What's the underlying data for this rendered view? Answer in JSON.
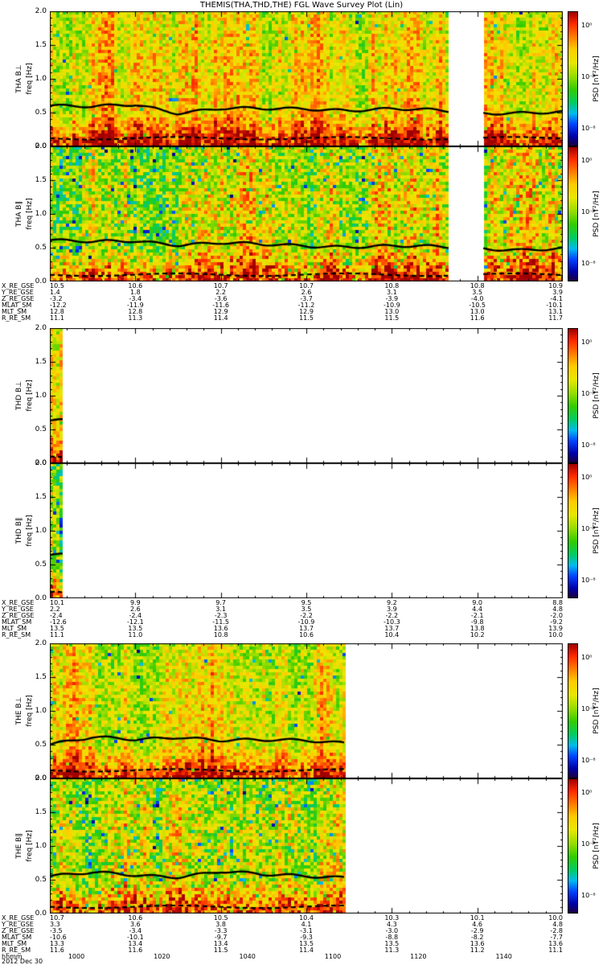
{
  "title": "THEMIS(THA,THD,THE) FGL Wave Survey Plot (Lin)",
  "colorbar": {
    "label": "PSD [nT²/Hz]",
    "ticks": [
      "10⁰",
      "10⁻⁴",
      "10⁻⁸"
    ]
  },
  "y_axis": {
    "label": "freq [Hz]",
    "tick_labels": [
      "2.0",
      "1.5",
      "1.0",
      "0.5",
      "0.0"
    ]
  },
  "panels": [
    {
      "name": "THA B⊥",
      "ylabel": "freq [Hz]"
    },
    {
      "name": "THA B∥",
      "ylabel": "freq [Hz]"
    },
    {
      "name": "THD B⊥",
      "ylabel": "freq [Hz]"
    },
    {
      "name": "THD B∥",
      "ylabel": "freq [Hz]"
    },
    {
      "name": "THE B⊥",
      "ylabel": "freq [Hz]"
    },
    {
      "name": "THE B∥",
      "ylabel": "freq [Hz]"
    }
  ],
  "sections": [
    {
      "satellite": "THA",
      "rows": [
        {
          "label": "X_RE_GSE",
          "values": [
            "10.5",
            "10.6",
            "10.7",
            "10.7",
            "10.8",
            "10.8",
            "10.9"
          ]
        },
        {
          "label": "Y_RE_GSE",
          "values": [
            "1.4",
            "1.8",
            "2.2",
            "2.6",
            "3.1",
            "3.5",
            "3.9"
          ]
        },
        {
          "label": "Z_RE_GSE",
          "values": [
            "-3.2",
            "-3.4",
            "-3.6",
            "-3.7",
            "-3.9",
            "-4.0",
            "-4.1"
          ]
        },
        {
          "label": "MLAT_SM",
          "values": [
            "-12.2",
            "-11.9",
            "-11.6",
            "-11.2",
            "-10.9",
            "-10.5",
            "-10.1"
          ]
        },
        {
          "label": "MLT_SM",
          "values": [
            "12.8",
            "12.8",
            "12.9",
            "12.9",
            "13.0",
            "13.0",
            "13.1"
          ]
        },
        {
          "label": "R_RE_SM",
          "values": [
            "11.1",
            "11.3",
            "11.4",
            "11.5",
            "11.5",
            "11.6",
            "11.7"
          ]
        }
      ]
    },
    {
      "satellite": "THD",
      "rows": [
        {
          "label": "X_RE_GSE",
          "values": [
            "10.1",
            "9.9",
            "9.7",
            "9.5",
            "9.2",
            "9.0",
            "8.8"
          ]
        },
        {
          "label": "Y_RE_GSE",
          "values": [
            "2.2",
            "2.6",
            "3.1",
            "3.5",
            "3.9",
            "4.4",
            "4.8"
          ]
        },
        {
          "label": "Z_RE_GSE",
          "values": [
            "-2.4",
            "-2.4",
            "-2.3",
            "-2.2",
            "-2.2",
            "-2.1",
            "-2.0"
          ]
        },
        {
          "label": "MLAT_SM",
          "values": [
            "-12.6",
            "-12.1",
            "-11.5",
            "-10.9",
            "-10.3",
            "-9.8",
            "-9.2"
          ]
        },
        {
          "label": "MLT_SM",
          "values": [
            "13.5",
            "13.5",
            "13.6",
            "13.7",
            "13.7",
            "13.8",
            "13.9"
          ]
        },
        {
          "label": "R_RE_SM",
          "values": [
            "11.1",
            "11.0",
            "10.8",
            "10.6",
            "10.4",
            "10.2",
            "10.0"
          ]
        }
      ]
    },
    {
      "satellite": "THE",
      "rows": [
        {
          "label": "X_RE_GSE",
          "values": [
            "10.7",
            "10.6",
            "10.5",
            "10.4",
            "10.3",
            "10.1",
            "10.0"
          ]
        },
        {
          "label": "Y_RE_GSE",
          "values": [
            "3.3",
            "3.6",
            "3.8",
            "4.1",
            "4.3",
            "4.6",
            "4.8"
          ]
        },
        {
          "label": "Z_RE_GSE",
          "values": [
            "-3.5",
            "-3.4",
            "-3.3",
            "-3.1",
            "-3.0",
            "-2.9",
            "-2.8"
          ]
        },
        {
          "label": "MLAT_SM",
          "values": [
            "-10.6",
            "-10.1",
            "-9.7",
            "-9.3",
            "-8.8",
            "-8.2",
            "-7.7"
          ]
        },
        {
          "label": "MLT_SM",
          "values": [
            "13.3",
            "13.4",
            "13.4",
            "13.5",
            "13.5",
            "13.6",
            "13.6"
          ]
        },
        {
          "label": "R_RE_SM",
          "values": [
            "11.6",
            "11.6",
            "11.5",
            "11.4",
            "11.3",
            "11.2",
            "11.1"
          ]
        }
      ]
    }
  ],
  "time_axis": {
    "label": "hhmm",
    "values": [
      "1000",
      "1020",
      "1040",
      "1100",
      "1120",
      "1140"
    ],
    "date": "2012 Dec 30"
  },
  "chart_data": {
    "type": "heatmap",
    "subtype": "wave-survey-spectrogram",
    "title": "THEMIS(THA,THD,THE) FGL Wave Survey Plot (Lin)",
    "x_axis": {
      "label": "hhmm",
      "date": "2012 Dec 30",
      "tick_labels": [
        "1000",
        "1020",
        "1040",
        "1100",
        "1120",
        "1140"
      ]
    },
    "y_axis": {
      "label": "freq [Hz]",
      "range": [
        0,
        2
      ],
      "ticks": [
        0.0,
        0.5,
        1.0,
        1.5,
        2.0
      ]
    },
    "color_scale": {
      "label": "PSD [nT²/Hz]",
      "colormap": "rainbow",
      "tick_labels": [
        "10⁰",
        "10⁻⁴",
        "10⁻⁸"
      ],
      "range_log10": [
        -8,
        1
      ]
    },
    "line_x_sampling": "solid_line_hz points are evenly spaced over the full x range 0..1",
    "panels": [
      {
        "name": "THA B⊥",
        "style": "perp",
        "coverage": [
          [
            0.0,
            0.78
          ],
          [
            0.845,
            1.0
          ]
        ],
        "solid_line_hz": [
          0.6,
          0.58,
          0.62,
          0.5,
          0.56,
          0.55,
          0.56,
          0.54,
          0.55,
          0.53,
          0.5,
          0.5,
          0.5
        ],
        "dashed_line_hz": 0.12
      },
      {
        "name": "THA B∥",
        "style": "par",
        "coverage": [
          [
            0.0,
            0.78
          ],
          [
            0.845,
            1.0
          ]
        ],
        "solid_line_hz": [
          0.61,
          0.58,
          0.6,
          0.55,
          0.57,
          0.54,
          0.53,
          0.52,
          0.52,
          0.51,
          0.5,
          0.47,
          0.48
        ],
        "dashed_line_hz": 0.1
      },
      {
        "name": "THD B⊥",
        "style": "perp",
        "coverage": [
          [
            0.0,
            0.028
          ]
        ],
        "solid_line_hz": [
          0.63,
          0.6
        ],
        "dashed_line_hz": 0.1
      },
      {
        "name": "THD B∥",
        "style": "par",
        "coverage": [
          [
            0.0,
            0.028
          ]
        ],
        "solid_line_hz": [
          0.64,
          0.6
        ],
        "dashed_line_hz": 0.1
      },
      {
        "name": "THE B⊥",
        "style": "perp",
        "coverage": [
          [
            0.0,
            0.575
          ]
        ],
        "solid_line_hz": [
          0.5,
          0.6,
          0.58,
          0.62,
          0.56,
          0.56,
          0.57,
          0.53,
          0.53,
          0.53,
          0.53,
          0.53,
          0.53
        ],
        "dashed_line_hz": 0.12
      },
      {
        "name": "THE B∥",
        "style": "par",
        "coverage": [
          [
            0.0,
            0.575
          ]
        ],
        "solid_line_hz": [
          0.55,
          0.6,
          0.57,
          0.55,
          0.62,
          0.57,
          0.56,
          0.54,
          0.54,
          0.54,
          0.54,
          0.54,
          0.54
        ],
        "dashed_line_hz": 0.1
      }
    ]
  }
}
